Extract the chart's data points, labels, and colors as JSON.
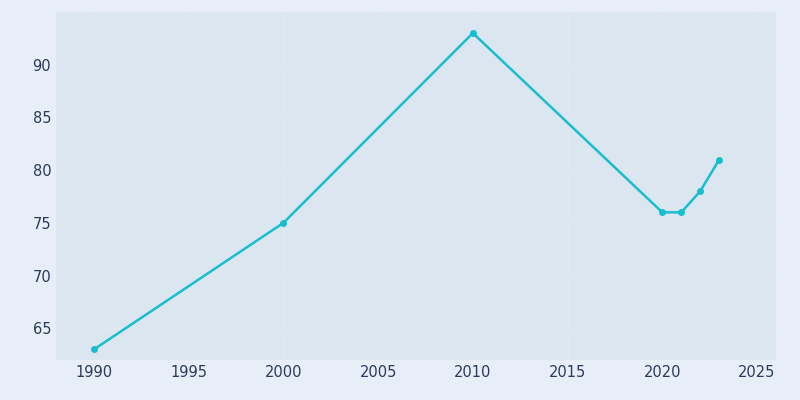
{
  "years": [
    1990,
    2000,
    2010,
    2020,
    2021,
    2022,
    2023
  ],
  "population": [
    63,
    75,
    93,
    76,
    76,
    78,
    81
  ],
  "line_color": "#17becf",
  "fig_bg_color": "#e8eef7",
  "plot_bg_color": "#dce6f0",
  "xlabel": "",
  "ylabel": "",
  "xlim": [
    1988,
    2026
  ],
  "ylim": [
    62,
    95
  ],
  "xticks": [
    1990,
    1995,
    2000,
    2005,
    2010,
    2015,
    2020,
    2025
  ],
  "yticks": [
    65,
    70,
    75,
    80,
    85,
    90
  ],
  "tick_color": "#2a3a5c",
  "grid_color": "#e0e8f0",
  "linewidth": 1.8,
  "markersize": 4
}
